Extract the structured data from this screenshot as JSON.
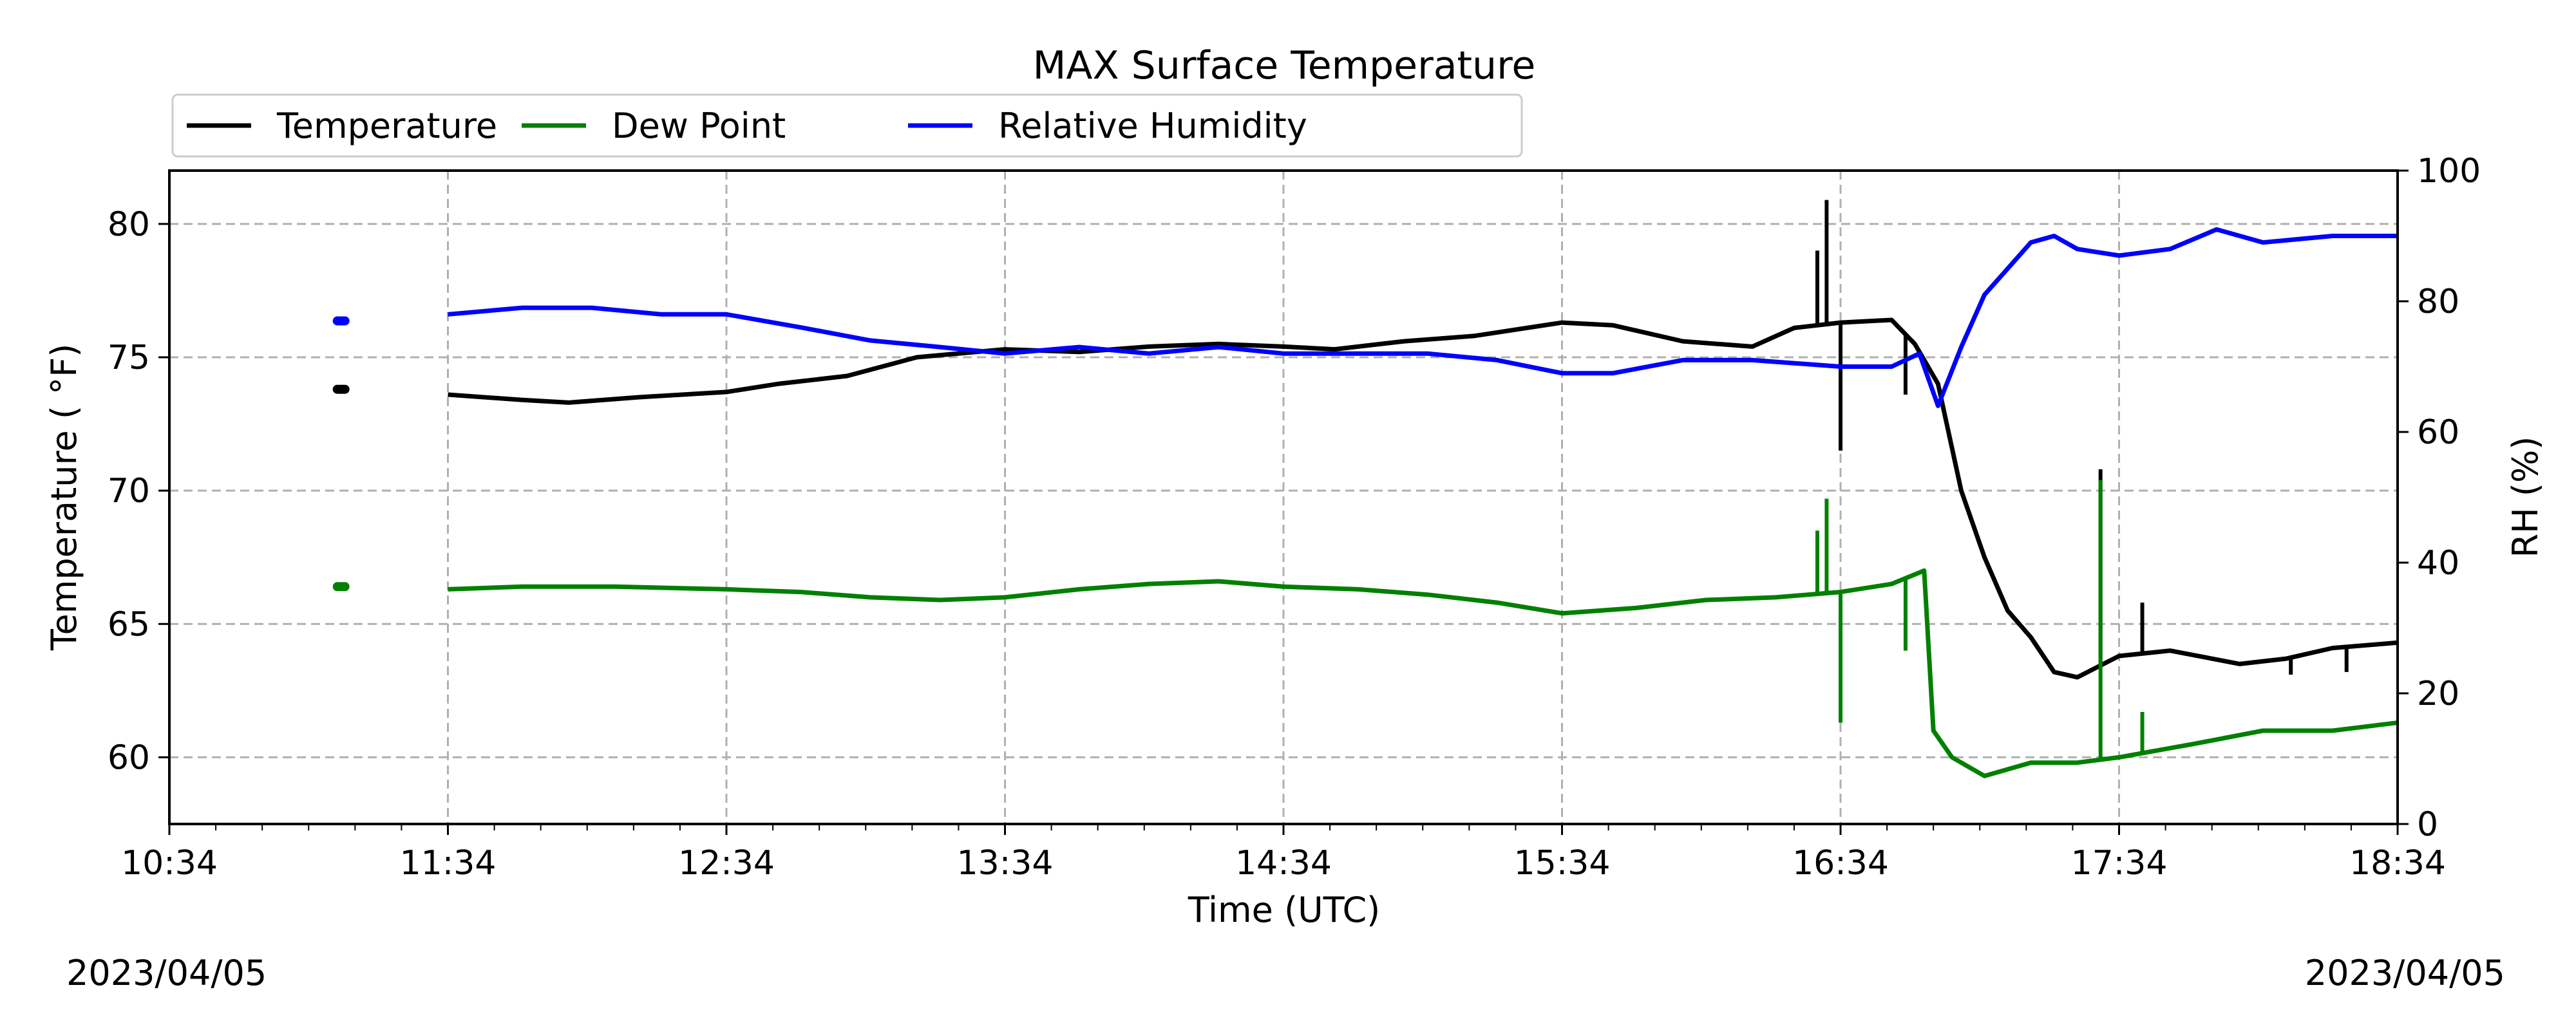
{
  "chart_data": {
    "type": "line",
    "title": "MAX Surface Temperature",
    "xlabel": "Time (UTC)",
    "ylabel": "Temperature ($^\\circ$F)",
    "ylabel_display": "Temperature ( °F)",
    "y2label": "RH (%)",
    "xlim": [
      "10:34",
      "18:34"
    ],
    "ylim": [
      57.5,
      82.0
    ],
    "y2lim": [
      0,
      100
    ],
    "x_ticks": [
      "10:34",
      "11:34",
      "12:34",
      "13:34",
      "14:34",
      "15:34",
      "16:34",
      "17:34",
      "18:34"
    ],
    "y_ticks": [
      60,
      65,
      70,
      75,
      80
    ],
    "y2_ticks": [
      0,
      20,
      40,
      60,
      80,
      100
    ],
    "grid": true,
    "legend_position": "top-left",
    "date_left": "2023/04/05",
    "date_right": "2023/04/05",
    "series": [
      {
        "name": "Temperature",
        "axis": "left",
        "color": "#000000",
        "x": [
          "11:11",
          "11:34",
          "11:50",
          "12:00",
          "12:15",
          "12:34",
          "12:45",
          "13:00",
          "13:15",
          "13:34",
          "13:50",
          "14:05",
          "14:20",
          "14:34",
          "14:45",
          "15:00",
          "15:15",
          "15:34",
          "15:45",
          "16:00",
          "16:15",
          "16:24",
          "16:34",
          "16:45",
          "16:50",
          "16:55",
          "17:00",
          "17:05",
          "17:10",
          "17:15",
          "17:20",
          "17:25",
          "17:34",
          "17:45",
          "18:00",
          "18:10",
          "18:20",
          "18:34"
        ],
        "y": [
          73.8,
          73.6,
          73.4,
          73.3,
          73.5,
          73.7,
          74.0,
          74.3,
          75.0,
          75.3,
          75.2,
          75.4,
          75.5,
          75.4,
          75.3,
          75.6,
          75.8,
          76.3,
          76.2,
          75.6,
          75.4,
          76.1,
          76.3,
          76.4,
          75.5,
          74.0,
          70.0,
          67.5,
          65.5,
          64.5,
          63.2,
          63.0,
          63.8,
          64.0,
          63.5,
          63.7,
          64.1,
          64.3
        ],
        "spikes": [
          {
            "x": "16:29",
            "y": 79.0
          },
          {
            "x": "16:31",
            "y": 80.9
          },
          {
            "x": "16:34",
            "y": 71.5
          },
          {
            "x": "16:48",
            "y": 73.6
          },
          {
            "x": "17:30",
            "y": 70.8
          },
          {
            "x": "17:39",
            "y": 65.8
          },
          {
            "x": "18:11",
            "y": 63.1
          },
          {
            "x": "18:23",
            "y": 63.2
          }
        ]
      },
      {
        "name": "Dew Point",
        "axis": "left",
        "color": "#008000",
        "x": [
          "11:11",
          "11:34",
          "11:50",
          "12:10",
          "12:34",
          "12:50",
          "13:05",
          "13:20",
          "13:34",
          "13:50",
          "14:05",
          "14:20",
          "14:34",
          "14:50",
          "15:05",
          "15:20",
          "15:34",
          "15:50",
          "16:05",
          "16:20",
          "16:34",
          "16:45",
          "16:52",
          "16:54",
          "16:58",
          "17:05",
          "17:15",
          "17:25",
          "17:34",
          "17:50",
          "18:05",
          "18:20",
          "18:34"
        ],
        "y": [
          66.4,
          66.3,
          66.4,
          66.4,
          66.3,
          66.2,
          66.0,
          65.9,
          66.0,
          66.3,
          66.5,
          66.6,
          66.4,
          66.3,
          66.1,
          65.8,
          65.4,
          65.6,
          65.9,
          66.0,
          66.2,
          66.5,
          67.0,
          61.0,
          60.0,
          59.3,
          59.8,
          59.8,
          60.0,
          60.5,
          61.0,
          61.0,
          61.3
        ],
        "spikes": [
          {
            "x": "16:29",
            "y": 68.5
          },
          {
            "x": "16:31",
            "y": 69.7
          },
          {
            "x": "16:34",
            "y": 61.3
          },
          {
            "x": "16:48",
            "y": 64.0
          },
          {
            "x": "17:30",
            "y": 70.4
          },
          {
            "x": "17:39",
            "y": 61.7
          }
        ]
      },
      {
        "name": "Relative Humidity",
        "axis": "right",
        "color": "#0000ff",
        "x": [
          "11:11",
          "11:34",
          "11:50",
          "12:05",
          "12:20",
          "12:34",
          "12:50",
          "13:05",
          "13:20",
          "13:34",
          "13:50",
          "14:05",
          "14:20",
          "14:34",
          "14:50",
          "15:05",
          "15:20",
          "15:34",
          "15:45",
          "16:00",
          "16:15",
          "16:34",
          "16:45",
          "16:51",
          "16:55",
          "17:00",
          "17:05",
          "17:10",
          "17:15",
          "17:20",
          "17:25",
          "17:34",
          "17:45",
          "17:55",
          "18:05",
          "18:20",
          "18:34"
        ],
        "y": [
          77,
          78,
          79,
          79,
          78,
          78,
          76,
          74,
          73,
          72,
          73,
          72,
          73,
          72,
          72,
          72,
          71,
          69,
          69,
          71,
          71,
          70,
          70,
          72,
          64,
          73,
          81,
          85,
          89,
          90,
          88,
          87,
          88,
          91,
          89,
          90,
          90
        ]
      }
    ]
  }
}
